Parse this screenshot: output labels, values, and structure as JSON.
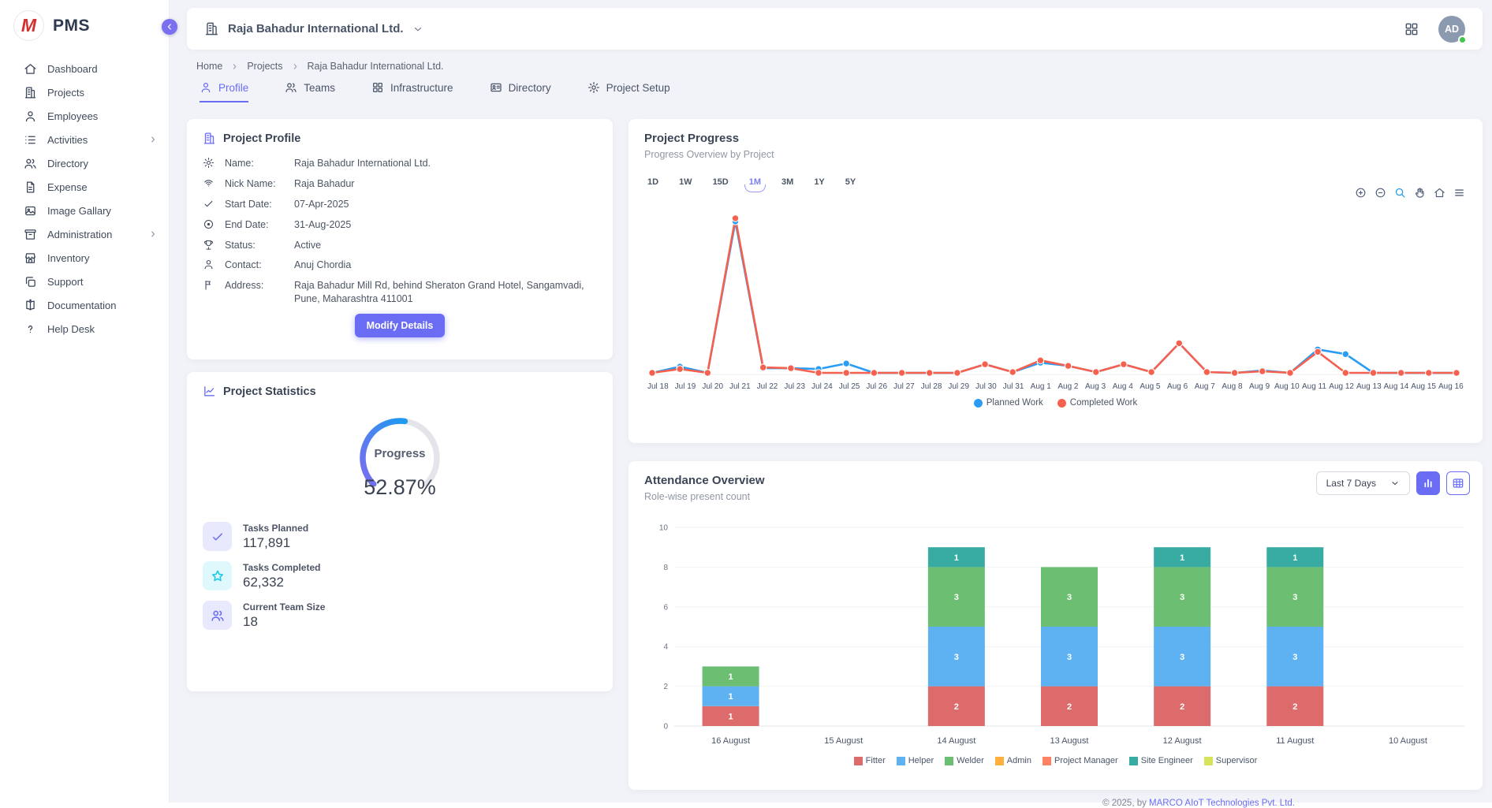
{
  "brand": {
    "logo_letter": "M",
    "name": "PMS"
  },
  "sidebar": {
    "items": [
      {
        "label": "Dashboard",
        "icon": "home",
        "has_children": false
      },
      {
        "label": "Projects",
        "icon": "building",
        "has_children": false
      },
      {
        "label": "Employees",
        "icon": "user",
        "has_children": false
      },
      {
        "label": "Activities",
        "icon": "list",
        "has_children": true
      },
      {
        "label": "Directory",
        "icon": "users",
        "has_children": false
      },
      {
        "label": "Expense",
        "icon": "file-text",
        "has_children": false
      },
      {
        "label": "Image Gallary",
        "icon": "image",
        "has_children": false
      },
      {
        "label": "Administration",
        "icon": "archive",
        "has_children": true
      },
      {
        "label": "Inventory",
        "icon": "store",
        "has_children": false
      },
      {
        "label": "Support",
        "icon": "copy",
        "has_children": false
      },
      {
        "label": "Documentation",
        "icon": "book",
        "has_children": false
      },
      {
        "label": "Help Desk",
        "icon": "help",
        "has_children": false
      }
    ]
  },
  "header": {
    "company": "Raja Bahadur International Ltd.",
    "avatar": "AD"
  },
  "breadcrumb": [
    "Home",
    "Projects",
    "Raja Bahadur International Ltd."
  ],
  "tabs": [
    {
      "label": "Profile",
      "icon": "user",
      "active": true
    },
    {
      "label": "Teams",
      "icon": "users",
      "active": false
    },
    {
      "label": "Infrastructure",
      "icon": "grid4",
      "active": false
    },
    {
      "label": "Directory",
      "icon": "id-card",
      "active": false
    },
    {
      "label": "Project Setup",
      "icon": "gear",
      "active": false
    }
  ],
  "profile_card": {
    "title": "Project Profile",
    "fields": [
      {
        "icon": "gear",
        "label": "Name:",
        "value": "Raja Bahadur International Ltd."
      },
      {
        "icon": "nick",
        "label": "Nick Name:",
        "value": "Raja Bahadur"
      },
      {
        "icon": "check",
        "label": "Start Date:",
        "value": "07-Apr-2025"
      },
      {
        "icon": "target",
        "label": "End Date:",
        "value": "31-Aug-2025"
      },
      {
        "icon": "trophy",
        "label": "Status:",
        "value": "Active"
      },
      {
        "icon": "user",
        "label": "Contact:",
        "value": "Anuj Chordia"
      },
      {
        "icon": "flag",
        "label": "Address:",
        "value": "Raja Bahadur Mill Rd, behind Sheraton Grand Hotel, Sangamvadi, Pune, Maharashtra 411001"
      }
    ],
    "button": "Modify Details"
  },
  "stats_card": {
    "title": "Project Statistics",
    "gauge_label": "Progress",
    "gauge_value": "52.87%",
    "gauge_percent": 52.87,
    "items": [
      {
        "icon": "check",
        "label": "Tasks Planned",
        "value": "117,891",
        "icon_color": "#6a6df4",
        "icon_bg": "#e9e9fd"
      },
      {
        "icon": "star",
        "label": "Tasks Completed",
        "value": "62,332",
        "icon_color": "#1fc8e3",
        "icon_bg": "#def8fc"
      },
      {
        "icon": "users",
        "label": "Current Team Size",
        "value": "18",
        "icon_color": "#6a6df4",
        "icon_bg": "#e9e9fd"
      }
    ]
  },
  "progress_card": {
    "title": "Project Progress",
    "subtitle": "Progress Overview by Project",
    "ranges": [
      "1D",
      "1W",
      "15D",
      "1M",
      "3M",
      "1Y",
      "5Y"
    ],
    "active_range": "1M",
    "toolbar": [
      "zoom-in",
      "zoom-out",
      "zoom-sel",
      "hand",
      "home",
      "menu"
    ]
  },
  "attendance_card": {
    "title": "Attendance Overview",
    "subtitle": "Role-wise present count",
    "filter": "Last 7 Days"
  },
  "footer": {
    "text": "© 2025, by ",
    "link": "MARCO AIoT Technologies Pvt. Ltd."
  },
  "colors": {
    "accent": "#6a6df4",
    "planned": "#2b9cf4",
    "completed": "#f6604e",
    "gauge_start": "#7b6cf0",
    "gauge_end": "#1e9bf0"
  },
  "chart_data": [
    {
      "type": "line",
      "title": "Project Progress",
      "x": [
        "Jul 18",
        "Jul 19",
        "Jul 20",
        "Jul 21",
        "Jul 22",
        "Jul 23",
        "Jul 24",
        "Jul 25",
        "Jul 26",
        "Jul 27",
        "Jul 28",
        "Jul 29",
        "Jul 30",
        "Jul 31",
        "Aug 1",
        "Aug 2",
        "Aug 3",
        "Aug 4",
        "Aug 5",
        "Aug 6",
        "Aug 7",
        "Aug 8",
        "Aug 9",
        "Aug 10",
        "Aug 11",
        "Aug 12",
        "Aug 13",
        "Aug 14",
        "Aug 15",
        "Aug 16"
      ],
      "series": [
        {
          "name": "Planned Work",
          "color": "#2b9cf4",
          "values": [
            1,
            5,
            1,
            98,
            4,
            4,
            3.5,
            7,
            1,
            1,
            1,
            1,
            6.5,
            1.5,
            7.5,
            5.5,
            1.5,
            6.5,
            1.5,
            20,
            1.5,
            1,
            2.5,
            1,
            16,
            13,
            1,
            1,
            1,
            1
          ]
        },
        {
          "name": "Completed Work",
          "color": "#f6604e",
          "values": [
            1,
            3.5,
            1,
            100,
            4.5,
            4,
            1,
            1,
            1,
            1,
            1,
            1,
            6.5,
            1.5,
            9,
            5.5,
            1.5,
            6.5,
            1.5,
            20,
            1.5,
            1,
            2,
            1,
            14.5,
            1,
            1,
            1,
            1,
            1
          ]
        }
      ],
      "ylim": [
        0,
        105
      ],
      "grid": false,
      "legend_position": "bottom"
    },
    {
      "type": "bar",
      "stacked": true,
      "title": "Attendance Overview",
      "categories": [
        "16 August",
        "15 August",
        "14 August",
        "13 August",
        "12 August",
        "11 August",
        "10 August"
      ],
      "series": [
        {
          "name": "Fitter",
          "color": "#dd6b6b",
          "values": [
            1,
            0,
            2,
            2,
            2,
            2,
            0
          ]
        },
        {
          "name": "Helper",
          "color": "#5fb2f2",
          "values": [
            1,
            0,
            3,
            3,
            3,
            3,
            0
          ]
        },
        {
          "name": "Welder",
          "color": "#6cbf72",
          "values": [
            1,
            0,
            3,
            3,
            3,
            3,
            0
          ]
        },
        {
          "name": "Admin",
          "color": "#ffaf3c",
          "values": [
            0,
            0,
            0,
            0,
            0,
            0,
            0
          ]
        },
        {
          "name": "Project Manager",
          "color": "#ff8264",
          "values": [
            0,
            0,
            0,
            0,
            0,
            0,
            0
          ]
        },
        {
          "name": "Site Engineer",
          "color": "#38aca3",
          "values": [
            0,
            0,
            1,
            0,
            1,
            1,
            0
          ]
        },
        {
          "name": "Supervisor",
          "color": "#d8e35c",
          "values": [
            0,
            0,
            0,
            0,
            0,
            0,
            0
          ]
        }
      ],
      "ylim": [
        0,
        10
      ],
      "yticks": [
        0,
        2,
        4,
        6,
        8,
        10
      ],
      "grid": true,
      "legend_position": "bottom"
    }
  ]
}
